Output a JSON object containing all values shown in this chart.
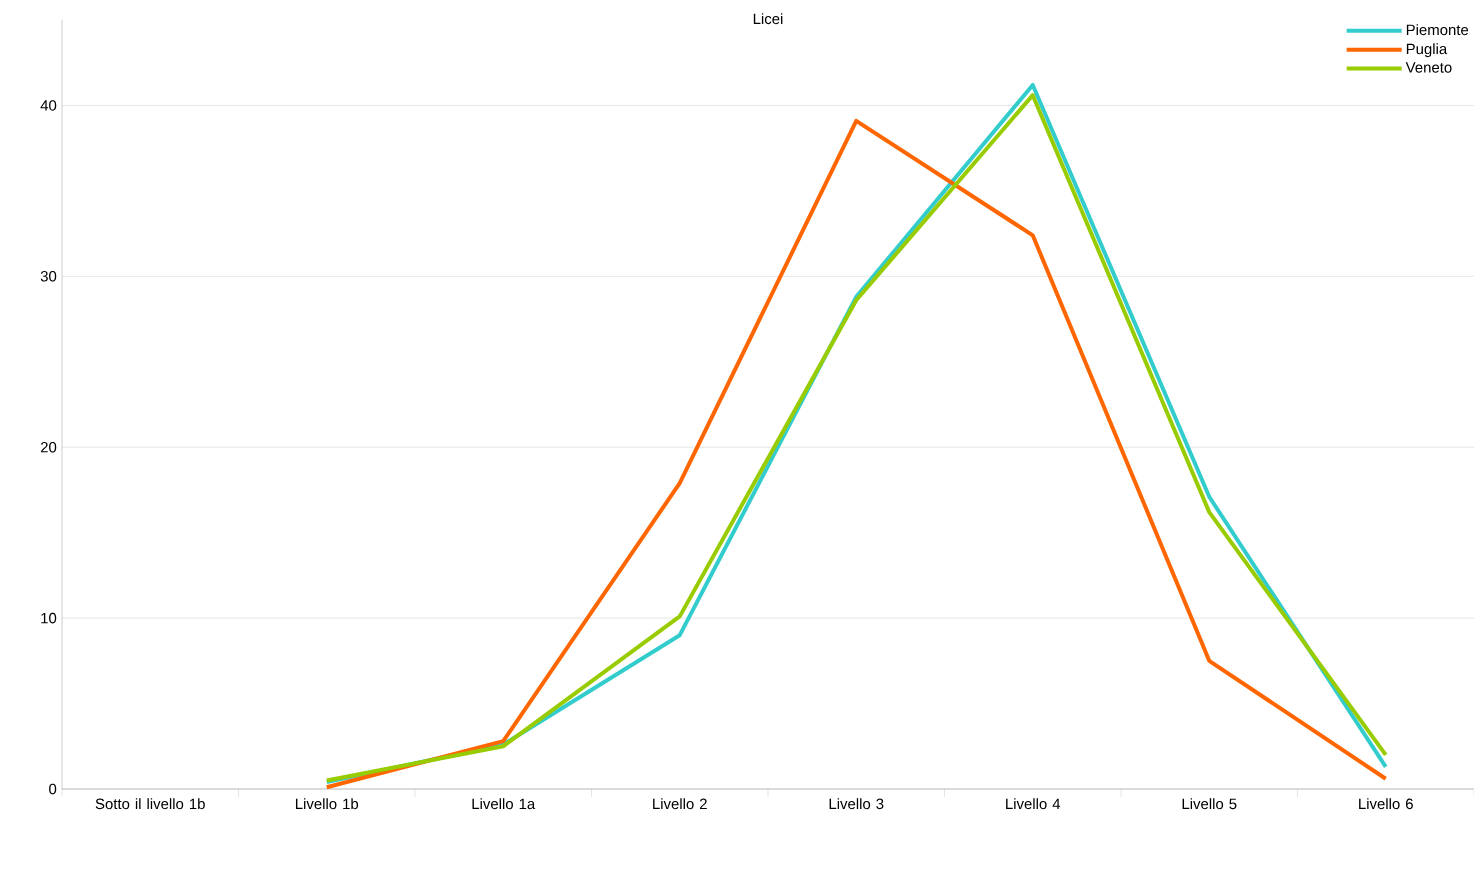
{
  "chart_data": {
    "type": "line",
    "title": "Licei",
    "categories": [
      "Sotto il livello 1b",
      "Livello 1b",
      "Livello 1a",
      "Livello 2",
      "Livello 3",
      "Livello 4",
      "Livello 5",
      "Livello 6"
    ],
    "series": [
      {
        "name": "Piemonte",
        "color": "#33cccc",
        "values": [
          null,
          0.4,
          2.6,
          9.0,
          28.8,
          41.2,
          17.1,
          1.3
        ]
      },
      {
        "name": "Puglia",
        "color": "#ff6600",
        "values": [
          null,
          0.1,
          2.8,
          17.9,
          39.1,
          32.4,
          7.5,
          0.6
        ]
      },
      {
        "name": "Veneto",
        "color": "#99cc00",
        "values": [
          null,
          0.5,
          2.5,
          10.1,
          28.6,
          40.6,
          16.2,
          2.0
        ]
      }
    ],
    "ylim": [
      0,
      45
    ],
    "yticks": [
      0,
      10,
      20,
      30,
      40
    ],
    "grid": "y",
    "legend": "top right",
    "marker": "none",
    "line_style": "solid"
  }
}
